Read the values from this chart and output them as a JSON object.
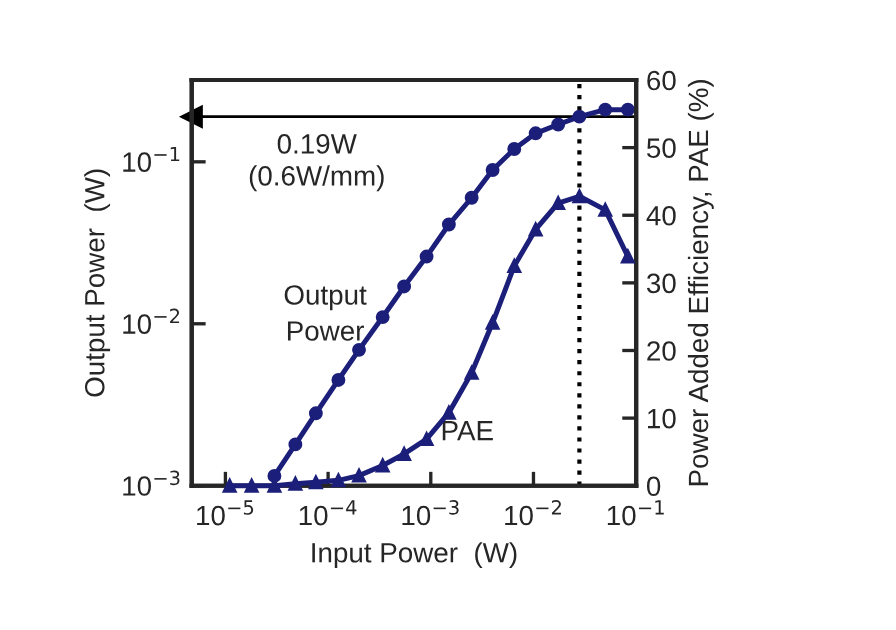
{
  "chart_data": {
    "type": "line",
    "xlabel": "Input Power  (W)",
    "ylabel": "Output Power  (W)",
    "y2label": "Power Added Efficiency, PAE (%)",
    "log": "xy",
    "xlim": [
      4.7e-06,
      0.1
    ],
    "xticks": [
      {
        "value": 1e-05,
        "label": "10$^{−5}$"
      },
      {
        "value": 0.0001,
        "label": "10$^{−4}$"
      },
      {
        "value": 0.001,
        "label": "10$^{−3}$"
      },
      {
        "value": 0.01,
        "label": "10$^{−2}$"
      },
      {
        "value": 0.1,
        "label": "10$^{−1}$"
      }
    ],
    "ylim": [
      0.001,
      0.32
    ],
    "yticks": [
      {
        "value": 0.001,
        "label": "10$^{−3}$"
      },
      {
        "value": 0.01,
        "label": "10$^{−2}$"
      },
      {
        "value": 0.1,
        "label": "10$^{−1}$"
      }
    ],
    "y2lim": [
      0,
      60
    ],
    "y2ticks": [
      0,
      10,
      20,
      30,
      40,
      50,
      60
    ],
    "grid": false,
    "legend": false,
    "line_style": "solid",
    "series": [
      {
        "name": "Output\nPower",
        "color": "#1c1f7a",
        "marker": "circle",
        "x": [
          3e-05,
          4.8e-05,
          7.6e-05,
          0.000126,
          0.0002,
          0.00034,
          0.00055,
          0.00091,
          0.0015,
          0.0025,
          0.004,
          0.0065,
          0.0105,
          0.0174,
          0.028,
          0.05,
          0.083
        ],
        "values": [
          0.00115,
          0.0018,
          0.0028,
          0.0045,
          0.0069,
          0.011,
          0.017,
          0.026,
          0.041,
          0.06,
          0.089,
          0.12,
          0.15,
          0.17,
          0.19,
          0.21,
          0.21
        ]
      },
      {
        "name": "PAE",
        "color": "#1c1f7a",
        "marker": "triangle",
        "axis": "y2",
        "x": [
          1.1e-05,
          1.8e-05,
          3e-05,
          4.8e-05,
          7.6e-05,
          0.000126,
          0.0002,
          0.00034,
          0.00055,
          0.00091,
          0.0015,
          0.0025,
          0.004,
          0.0065,
          0.0105,
          0.0174,
          0.028,
          0.05,
          0.083
        ],
        "values": [
          0,
          0,
          0,
          0.3,
          0.5,
          0.8,
          1.5,
          3,
          4.7,
          6.9,
          10.8,
          16.7,
          24.1,
          32.5,
          37.9,
          41.8,
          42.8,
          40.8,
          33.9
        ]
      }
    ],
    "ref_lines": [
      {
        "axis": "x",
        "value": 0.028,
        "line_style": "dotted",
        "color": "#000000"
      },
      {
        "axis": "y",
        "value": 0.19,
        "label": "0.19W\n(0.6W/mm)",
        "line_style": "solid",
        "color": "#000000"
      }
    ]
  }
}
